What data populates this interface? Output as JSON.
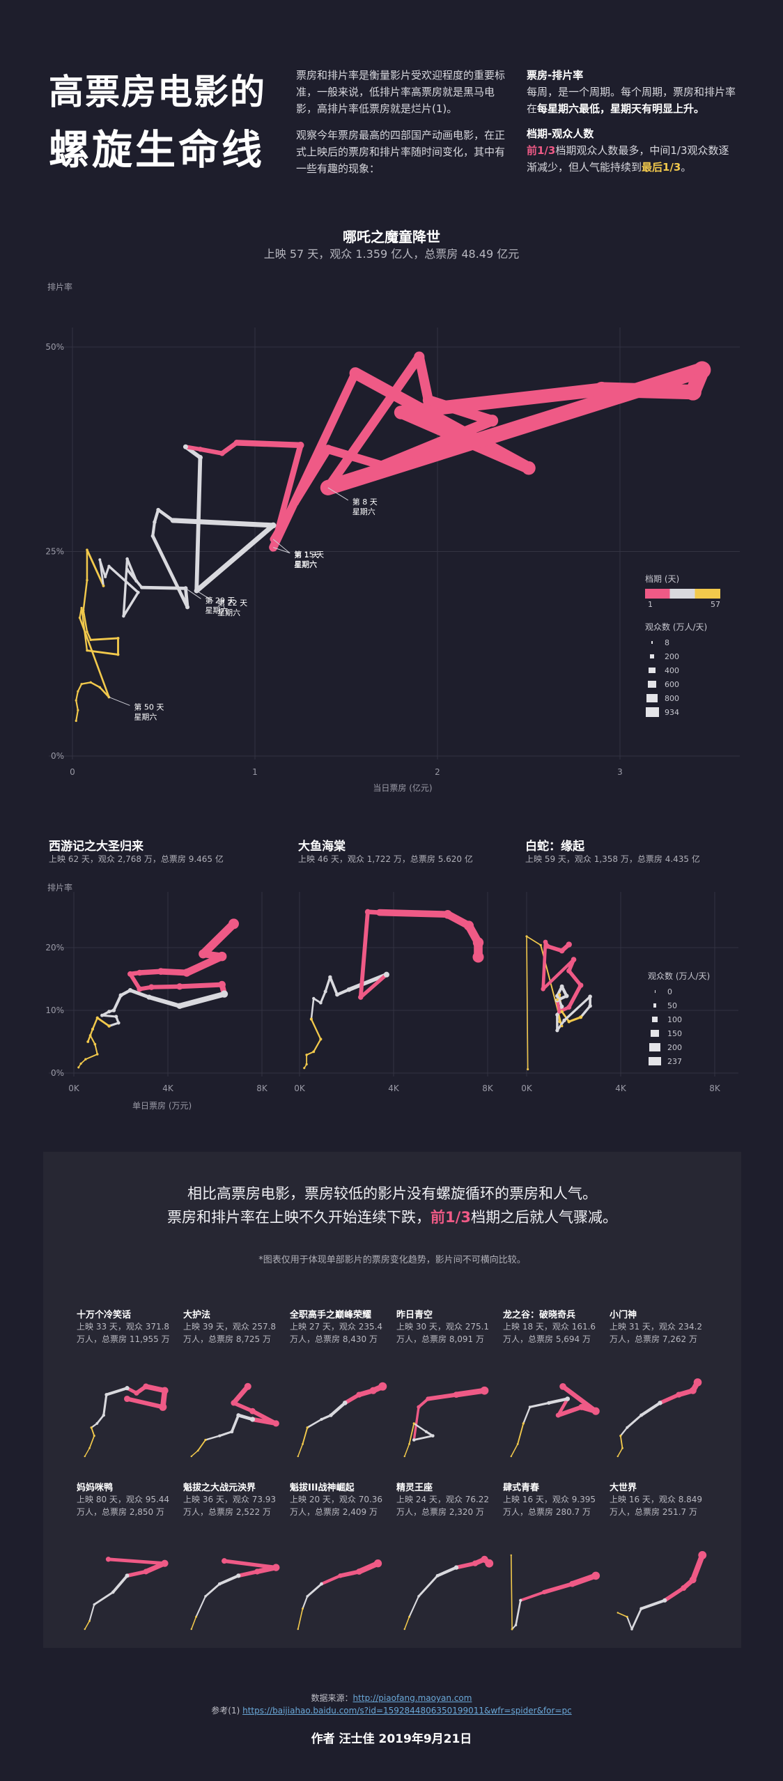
{
  "header": {
    "title_line1": "高票房电影的",
    "title_line2": "螺旋生命线",
    "intro_p1": "票房和排片率是衡量影片受欢迎程度的重要标准，一般来说，低排片率高票房就是黑马电影，高排片率低票房就是烂片(1)。",
    "intro_p2": "观察今年票房最高的四部国产动画电影，在正式上映后的票房和排片率随时间变化，其中有一些有趣的现象：",
    "box_office_heading": "票房-排片率",
    "box_office_text1": "每周，是一个周期。每个周期，票房和排片率在",
    "box_office_bold": "每星期六最低，星期天有明显上升。",
    "period_heading": "档期-观众人数",
    "period_pink": "前1/3",
    "period_text1": "档期观众人数最多，中间1/3观众数逐渐减少，但人气能持续到",
    "period_yel": "最后1/3",
    "period_text2": "。"
  },
  "main_chart": {
    "title": "哪吒之魔童降世",
    "subtitle": "上映 57 天，观众 1.359 亿人，总票房 48.49 亿元",
    "y_axis_label": "排片率",
    "x_axis_label": "当日票房 (亿元)",
    "x_ticks": [
      "0",
      "1",
      "2",
      "3"
    ],
    "y_ticks": [
      "0%",
      "25%",
      "50%"
    ],
    "annotations": [
      {
        "day": "第 1 天",
        "weekday": "星期六"
      },
      {
        "day": "第 8 天",
        "weekday": "星期六"
      },
      {
        "day": "第 15 天",
        "weekday": "星期六"
      },
      {
        "day": "第 22 天",
        "weekday": "星期六"
      },
      {
        "day": "第 29 天",
        "weekday": "星期六"
      },
      {
        "day": "第 50 天",
        "weekday": "星期六"
      }
    ],
    "legend": {
      "period_title": "档期 (天)",
      "period_min": "1",
      "period_max": "57",
      "audience_title": "观众数 (万人/天)",
      "audience_values": [
        "8",
        "200",
        "400",
        "600",
        "800",
        "934"
      ]
    }
  },
  "small_charts": {
    "y_axis_label": "排片率",
    "x_axis_label": "单日票房 (万元)",
    "x_ticks": [
      "0K",
      "4K",
      "8K"
    ],
    "y_ticks": [
      "0%",
      "10%",
      "20%"
    ],
    "films": [
      {
        "title": "西游记之大圣归来",
        "sub": "上映 62 天，观众 2,768 万，总票房 9.465 亿"
      },
      {
        "title": "大鱼海棠",
        "sub": "上映 46 天，观众 1,722 万，总票房 5.620 亿"
      },
      {
        "title": "白蛇：缘起",
        "sub": "上映 59 天，观众 1,358 万，总票房 4.435 亿"
      }
    ],
    "audience_legend": {
      "title": "观众数 (万人/天)",
      "values": [
        "0",
        "50",
        "100",
        "150",
        "200",
        "237"
      ]
    }
  },
  "panel": {
    "line1": "相比高票房电影，票房较低的影片没有螺旋循环的票房和人气。",
    "line2_a": "票房和排片率在上映不久开始连续下跌，",
    "line2_pink": "前1/3",
    "line2_b": "档期之后就人气骤减。",
    "note": "*图表仅用于体现单部影片的票房变化趋势，影片间不可横向比较。",
    "films": [
      {
        "title": "十万个冷笑话",
        "l1": "上映 33 天，观众 371.8",
        "l2": "万人，总票房 11,955 万"
      },
      {
        "title": "大护法",
        "l1": "上映 39 天，观众 257.8",
        "l2": "万人，总票房 8,725 万"
      },
      {
        "title": "全职高手之巅峰荣耀",
        "l1": "上映 27 天，观众 235.4",
        "l2": "万人，总票房 8,430 万"
      },
      {
        "title": "昨日青空",
        "l1": "上映 30 天，观众 275.1",
        "l2": "万人，总票房 8,091 万"
      },
      {
        "title": "龙之谷：破晓奇兵",
        "l1": "上映 18 天，观众 161.6",
        "l2": "万人，总票房 5,694 万"
      },
      {
        "title": "小门神",
        "l1": "上映 31 天，观众 234.2",
        "l2": "万人，总票房 7,262 万"
      },
      {
        "title": "妈妈咪鸭",
        "l1": "上映 80 天，观众 95.44",
        "l2": "万人，总票房 2,850 万"
      },
      {
        "title": "魁拔之大战元泱界",
        "l1": "上映 36 天，观众 73.93",
        "l2": "万人，总票房 2,522 万"
      },
      {
        "title": "魁拔III战神崛起",
        "l1": "上映 20 天，观众 70.36",
        "l2": "万人，总票房 2,409 万"
      },
      {
        "title": "精灵王座",
        "l1": "上映 24 天，观众 76.22",
        "l2": "万人，总票房 2,320 万"
      },
      {
        "title": "肆式青春",
        "l1": "上映 16 天，观众 9.395",
        "l2": "万人，总票房 280.7 万"
      },
      {
        "title": "大世界",
        "l1": "上映 16 天，观众 8.849",
        "l2": "万人，总票房 251.7 万"
      }
    ]
  },
  "footer": {
    "source_label": "数据来源：",
    "source_url": "http://piaofang.maoyan.com",
    "ref_label": "参考(1) ",
    "ref_url": "https://baijiahao.baidu.com/s?id=1592844806350199011&wfr=spider&for=pc",
    "author": "作者  汪士佳    2019年9月21日"
  },
  "colors": {
    "early": "#ef5a86",
    "middle": "#d9d9de",
    "late": "#f2c94c",
    "background": "#1e1e2c",
    "panel": "#272733"
  },
  "chart_data": [
    {
      "type": "line",
      "name": "哪吒之魔童降世",
      "x_unit": "亿元",
      "xlim": [
        0,
        3.5
      ],
      "ylim": [
        0,
        52
      ],
      "points": [
        {
          "day": 1,
          "x": 1.1,
          "y": 26.5,
          "aud": 280
        },
        {
          "day": 2,
          "x": 1.22,
          "y": 31,
          "aud": 350
        },
        {
          "day": 3,
          "x": 1.4,
          "y": 37.5,
          "aud": 420
        },
        {
          "day": 4,
          "x": 1.7,
          "y": 35.5,
          "aud": 480
        },
        {
          "day": 5,
          "x": 2.3,
          "y": 41,
          "aud": 600
        },
        {
          "day": 6,
          "x": 1.95,
          "y": 43.5,
          "aud": 560
        },
        {
          "day": 7,
          "x": 1.9,
          "y": 48.8,
          "aud": 520
        },
        {
          "day": 8,
          "x": 1.4,
          "y": 32.8,
          "aud": 400
        },
        {
          "day": 9,
          "x": 3.45,
          "y": 47.2,
          "aud": 934
        },
        {
          "day": 10,
          "x": 3.4,
          "y": 44.5,
          "aud": 900
        },
        {
          "day": 11,
          "x": 2.9,
          "y": 44.8,
          "aud": 820
        },
        {
          "day": 12,
          "x": 1.8,
          "y": 42,
          "aud": 560
        },
        {
          "day": 13,
          "x": 2.5,
          "y": 35.2,
          "aud": 700
        },
        {
          "day": 14,
          "x": 1.55,
          "y": 46.8,
          "aud": 470
        },
        {
          "day": 15,
          "x": 1.1,
          "y": 25.5,
          "aud": 260
        },
        {
          "day": 16,
          "x": 1.25,
          "y": 38,
          "aud": 300
        },
        {
          "day": 17,
          "x": 0.9,
          "y": 38.3,
          "aud": 220
        },
        {
          "day": 18,
          "x": 0.82,
          "y": 37,
          "aud": 200
        },
        {
          "day": 19,
          "x": 0.7,
          "y": 37.5,
          "aud": 180
        },
        {
          "day": 20,
          "x": 0.62,
          "y": 37.8,
          "aud": 170
        },
        {
          "day": 21,
          "x": 0.7,
          "y": 36.5,
          "aud": 175
        },
        {
          "day": 22,
          "x": 0.68,
          "y": 20.2,
          "aud": 160
        },
        {
          "day": 23,
          "x": 1.1,
          "y": 28.2,
          "aud": 240
        },
        {
          "day": 24,
          "x": 0.55,
          "y": 28.8,
          "aud": 120
        },
        {
          "day": 25,
          "x": 0.47,
          "y": 30.1,
          "aud": 110
        },
        {
          "day": 26,
          "x": 0.45,
          "y": 28.6,
          "aud": 100
        },
        {
          "day": 27,
          "x": 0.44,
          "y": 26.9,
          "aud": 95
        },
        {
          "day": 28,
          "x": 0.63,
          "y": 18.2,
          "aud": 130
        },
        {
          "day": 29,
          "x": 0.62,
          "y": 20.5,
          "aud": 130
        },
        {
          "day": 30,
          "x": 0.38,
          "y": 20.6,
          "aud": 80
        },
        {
          "day": 31,
          "x": 0.3,
          "y": 22.8,
          "aud": 70
        },
        {
          "day": 32,
          "x": 0.35,
          "y": 21.4,
          "aud": 75
        },
        {
          "day": 33,
          "x": 0.3,
          "y": 24.1,
          "aud": 65
        },
        {
          "day": 34,
          "x": 0.28,
          "y": 17.1,
          "aud": 60
        },
        {
          "day": 35,
          "x": 0.36,
          "y": 20.0,
          "aud": 70
        },
        {
          "day": 36,
          "x": 0.2,
          "y": 23.2,
          "aud": 50
        },
        {
          "day": 37,
          "x": 0.18,
          "y": 21.9,
          "aud": 45
        },
        {
          "day": 38,
          "x": 0.15,
          "y": 24.0,
          "aud": 40
        },
        {
          "day": 39,
          "x": 0.17,
          "y": 20.8,
          "aud": 40
        },
        {
          "day": 40,
          "x": 0.08,
          "y": 25.2,
          "aud": 25
        },
        {
          "day": 41,
          "x": 0.08,
          "y": 21.5,
          "aud": 22
        },
        {
          "day": 42,
          "x": 0.06,
          "y": 17.8,
          "aud": 20
        },
        {
          "day": 43,
          "x": 0.08,
          "y": 15.2,
          "aud": 20
        },
        {
          "day": 44,
          "x": 0.1,
          "y": 14.2,
          "aud": 22
        },
        {
          "day": 45,
          "x": 0.25,
          "y": 14.4,
          "aud": 40
        },
        {
          "day": 46,
          "x": 0.25,
          "y": 12.4,
          "aud": 38
        },
        {
          "day": 47,
          "x": 0.08,
          "y": 12.9,
          "aud": 18
        },
        {
          "day": 48,
          "x": 0.05,
          "y": 18.1,
          "aud": 15
        },
        {
          "day": 49,
          "x": 0.04,
          "y": 16.9,
          "aud": 12
        },
        {
          "day": 50,
          "x": 0.2,
          "y": 7.2,
          "aud": 30
        },
        {
          "day": 51,
          "x": 0.15,
          "y": 8.4,
          "aud": 22
        },
        {
          "day": 52,
          "x": 0.1,
          "y": 9.0,
          "aud": 15
        },
        {
          "day": 53,
          "x": 0.05,
          "y": 8.8,
          "aud": 10
        },
        {
          "day": 54,
          "x": 0.03,
          "y": 7.9,
          "aud": 9
        },
        {
          "day": 55,
          "x": 0.02,
          "y": 6.8,
          "aud": 8
        },
        {
          "day": 56,
          "x": 0.03,
          "y": 5.6,
          "aud": 8
        },
        {
          "day": 57,
          "x": 0.02,
          "y": 4.3,
          "aud": 8
        }
      ]
    },
    {
      "type": "line",
      "name": "西游记之大圣归来",
      "x_unit": "万元",
      "xlim": [
        0,
        8500
      ],
      "ylim": [
        0,
        27
      ],
      "points": [
        [
          6800,
          23.8
        ],
        [
          5500,
          19
        ],
        [
          6300,
          18.6
        ],
        [
          4800,
          16
        ],
        [
          3700,
          16.2
        ],
        [
          2800,
          16
        ],
        [
          2400,
          15.8
        ],
        [
          2800,
          13.4
        ],
        [
          3300,
          13.7
        ],
        [
          4500,
          13.8
        ],
        [
          6300,
          14.1
        ],
        [
          6400,
          12.6
        ],
        [
          4500,
          10.7
        ],
        [
          3200,
          12.1
        ],
        [
          2400,
          13.2
        ],
        [
          2000,
          12.4
        ],
        [
          1700,
          10
        ],
        [
          1500,
          9.8
        ],
        [
          1200,
          9.2
        ],
        [
          1800,
          9
        ],
        [
          1900,
          8
        ],
        [
          1500,
          7.5
        ],
        [
          1000,
          8.8
        ],
        [
          800,
          7
        ],
        [
          600,
          5
        ],
        [
          700,
          6
        ],
        [
          900,
          4.6
        ],
        [
          1000,
          3
        ],
        [
          500,
          2.2
        ],
        [
          300,
          1.5
        ],
        [
          200,
          0.9
        ]
      ],
      "audience_max": 237
    },
    {
      "type": "line",
      "name": "大鱼海棠",
      "x_unit": "万元",
      "xlim": [
        0,
        8500
      ],
      "ylim": [
        0,
        27
      ],
      "points": [
        [
          7600,
          18.5
        ],
        [
          7600,
          20.8
        ],
        [
          7200,
          23.5
        ],
        [
          6300,
          25.3
        ],
        [
          3400,
          25.6
        ],
        [
          2900,
          25.7
        ],
        [
          2600,
          12.1
        ],
        [
          3700,
          15.7
        ],
        [
          2100,
          13.3
        ],
        [
          1600,
          12.5
        ],
        [
          1300,
          15.3
        ],
        [
          1100,
          13
        ],
        [
          900,
          11.2
        ],
        [
          600,
          11.9
        ],
        [
          500,
          8.6
        ],
        [
          900,
          5.4
        ],
        [
          600,
          3.4
        ],
        [
          300,
          2.9
        ],
        [
          300,
          1.4
        ],
        [
          200,
          0.8
        ]
      ],
      "audience_max": 237
    },
    {
      "type": "line",
      "name": "白蛇：缘起",
      "x_unit": "万元",
      "xlim": [
        0,
        8500
      ],
      "ylim": [
        0,
        27
      ],
      "points": [
        [
          1800,
          20.5
        ],
        [
          1500,
          19.5
        ],
        [
          900,
          20.2
        ],
        [
          800,
          20.9
        ],
        [
          700,
          13.4
        ],
        [
          2000,
          18.1
        ],
        [
          1800,
          16.3
        ],
        [
          2300,
          14
        ],
        [
          1800,
          10.5
        ],
        [
          1400,
          9.8
        ],
        [
          1300,
          11.6
        ],
        [
          1700,
          12.3
        ],
        [
          1500,
          13.8
        ],
        [
          1300,
          12.3
        ],
        [
          1500,
          10.6
        ],
        [
          1300,
          9.3
        ],
        [
          1300,
          6.8
        ],
        [
          1600,
          8.4
        ],
        [
          2700,
          12.2
        ],
        [
          2700,
          10.7
        ],
        [
          2300,
          8.9
        ],
        [
          1800,
          8.2
        ],
        [
          1500,
          9.8
        ],
        [
          1400,
          12.5
        ],
        [
          1300,
          11.7
        ],
        [
          1400,
          8.2
        ],
        [
          1500,
          7.5
        ],
        [
          600,
          20.4
        ],
        [
          0,
          21.8
        ],
        [
          50,
          0.6
        ]
      ],
      "audience_max": 237
    }
  ]
}
